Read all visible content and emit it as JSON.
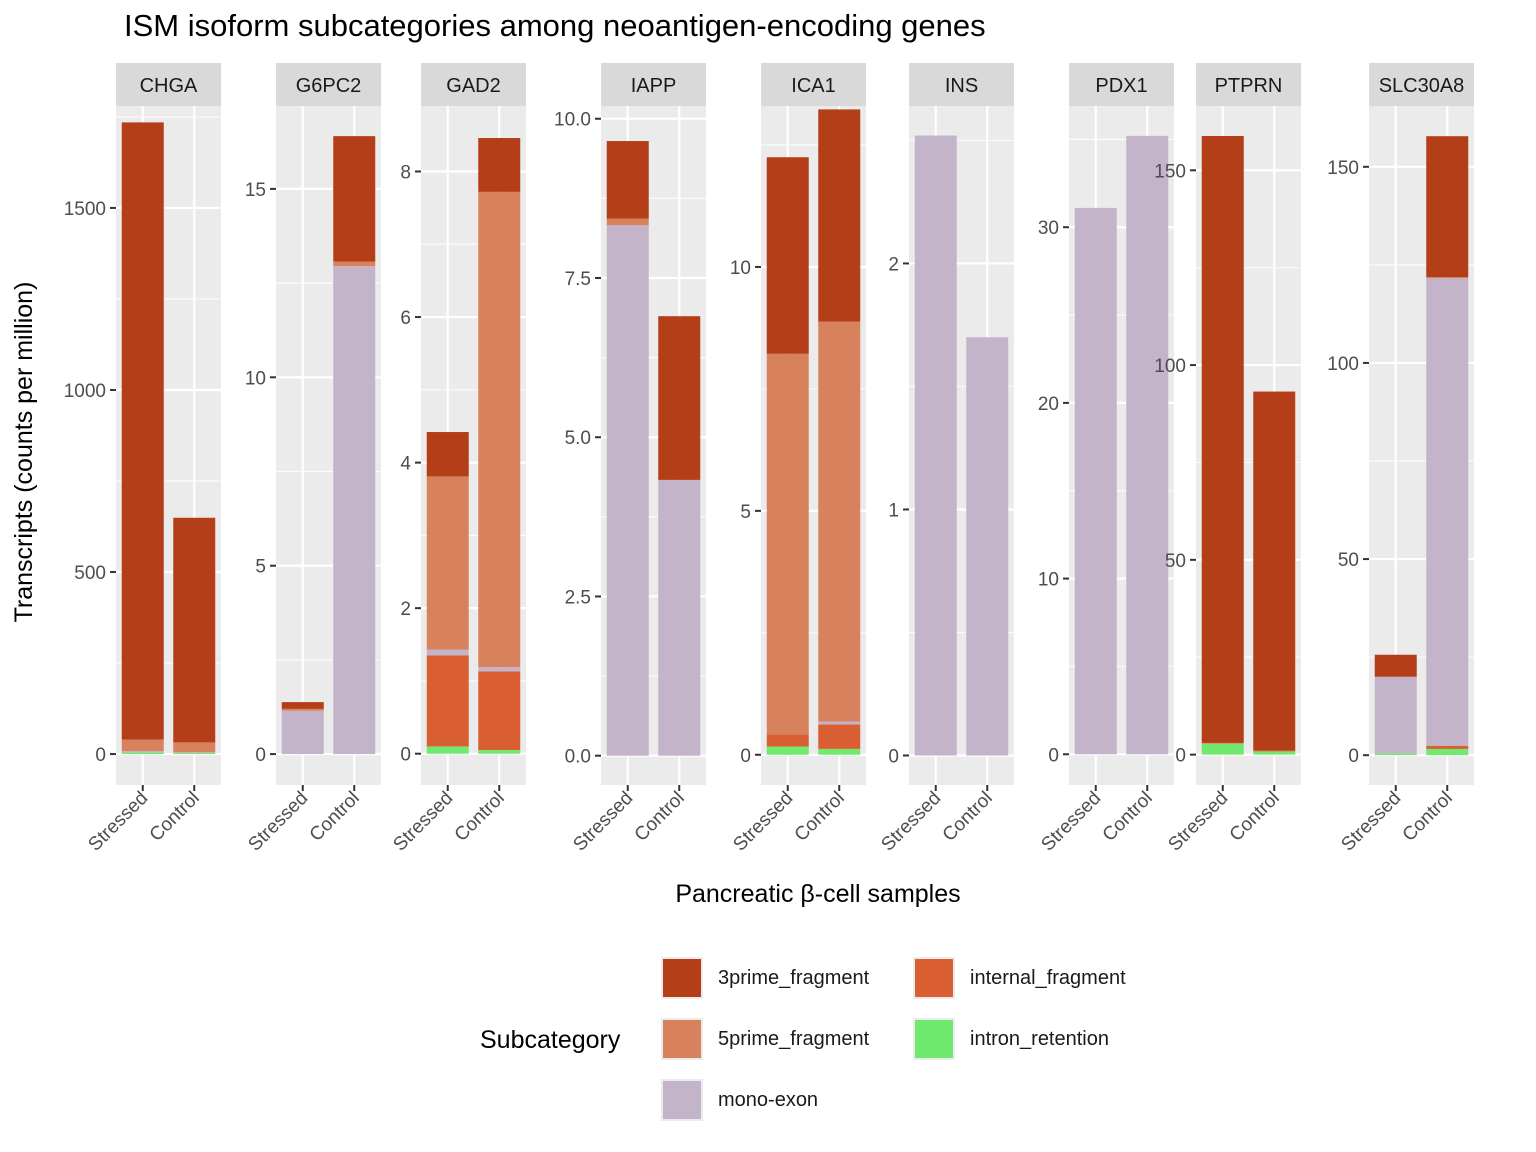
{
  "chart_data": {
    "type": "bar",
    "stacked": true,
    "faceted": true,
    "facet_scales": "free_y",
    "title": "ISM isoform subcategories among neoantigen-encoding genes",
    "xlabel": "Pancreatic β-cell samples",
    "ylabel": "Transcripts (counts per million)",
    "categories": [
      "Stressed",
      "Control"
    ],
    "legend": {
      "title": "Subcategory",
      "placement": "bottom",
      "items": [
        {
          "name": "3prime_fragment",
          "color": "#B43E17"
        },
        {
          "name": "5prime_fragment",
          "color": "#D8825D"
        },
        {
          "name": "mono-exon",
          "color": "#C4B4C9"
        },
        {
          "name": "internal_fragment",
          "color": "#D95F33"
        },
        {
          "name": "intron_retention",
          "color": "#71E86E"
        }
      ]
    },
    "stack_order": [
      "intron_retention",
      "internal_fragment",
      "mono-exon",
      "5prime_fragment",
      "3prime_fragment"
    ],
    "facets": [
      {
        "gene": "CHGA",
        "ylim": [
          -85,
          1780
        ],
        "ticks": [
          0,
          500,
          1000,
          1500
        ],
        "tick_labels": [
          "0",
          "500",
          "1000",
          "1500"
        ],
        "bars": [
          {
            "category": "Stressed",
            "segments": {
              "intron_retention": 5,
              "internal_fragment": 0,
              "mono-exon": 3,
              "5prime_fragment": 32,
              "3prime_fragment": 1695
            }
          },
          {
            "category": "Control",
            "segments": {
              "intron_retention": 3,
              "internal_fragment": 0,
              "mono-exon": 2,
              "5prime_fragment": 27,
              "3prime_fragment": 617
            }
          }
        ]
      },
      {
        "gene": "G6PC2",
        "ylim": [
          -0.82,
          17.2
        ],
        "ticks": [
          0,
          5,
          10,
          15
        ],
        "tick_labels": [
          "0",
          "5",
          "10",
          "15"
        ],
        "bars": [
          {
            "category": "Stressed",
            "segments": {
              "intron_retention": 0,
              "internal_fragment": 0,
              "mono-exon": 1.15,
              "5prime_fragment": 0.05,
              "3prime_fragment": 0.18
            }
          },
          {
            "category": "Control",
            "segments": {
              "intron_retention": 0,
              "internal_fragment": 0,
              "mono-exon": 12.95,
              "5prime_fragment": 0.12,
              "3prime_fragment": 3.33
            }
          }
        ]
      },
      {
        "gene": "GAD2",
        "ylim": [
          -0.43,
          8.9
        ],
        "ticks": [
          0,
          2,
          4,
          6,
          8
        ],
        "tick_labels": [
          "0",
          "2",
          "4",
          "6",
          "8"
        ],
        "bars": [
          {
            "category": "Stressed",
            "segments": {
              "intron_retention": 0.1,
              "internal_fragment": 1.25,
              "mono-exon": 0.08,
              "5prime_fragment": 2.38,
              "3prime_fragment": 0.61
            }
          },
          {
            "category": "Control",
            "segments": {
              "intron_retention": 0.05,
              "internal_fragment": 1.08,
              "mono-exon": 0.06,
              "5prime_fragment": 6.53,
              "3prime_fragment": 0.74
            }
          }
        ]
      },
      {
        "gene": "IAPP",
        "ylim": [
          -0.46,
          10.2
        ],
        "ticks": [
          0,
          2.5,
          5,
          7.5,
          10
        ],
        "tick_labels": [
          "0.0",
          "2.5",
          "5.0",
          "7.5",
          "10.0"
        ],
        "bars": [
          {
            "category": "Stressed",
            "segments": {
              "intron_retention": 0,
              "internal_fragment": 0,
              "mono-exon": 8.33,
              "5prime_fragment": 0.1,
              "3prime_fragment": 1.22
            }
          },
          {
            "category": "Control",
            "segments": {
              "intron_retention": 0,
              "internal_fragment": 0,
              "mono-exon": 4.33,
              "5prime_fragment": 0,
              "3prime_fragment": 2.57
            }
          }
        ]
      },
      {
        "gene": "ICA1",
        "ylim": [
          -0.62,
          13.3
        ],
        "ticks": [
          0,
          5,
          10
        ],
        "tick_labels": [
          "0",
          "5",
          "10"
        ],
        "bars": [
          {
            "category": "Stressed",
            "segments": {
              "intron_retention": 0.17,
              "internal_fragment": 0.25,
              "mono-exon": 0,
              "5prime_fragment": 7.8,
              "3prime_fragment": 4.03
            }
          },
          {
            "category": "Control",
            "segments": {
              "intron_retention": 0.12,
              "internal_fragment": 0.5,
              "mono-exon": 0.06,
              "5prime_fragment": 8.2,
              "3prime_fragment": 4.35
            }
          }
        ]
      },
      {
        "gene": "INS",
        "ylim": [
          -0.12,
          2.64
        ],
        "ticks": [
          0,
          1,
          2
        ],
        "tick_labels": [
          "0",
          "1",
          "2"
        ],
        "bars": [
          {
            "category": "Stressed",
            "segments": {
              "intron_retention": 0,
              "internal_fragment": 0,
              "mono-exon": 2.52,
              "5prime_fragment": 0,
              "3prime_fragment": 0
            }
          },
          {
            "category": "Control",
            "segments": {
              "intron_retention": 0,
              "internal_fragment": 0,
              "mono-exon": 1.7,
              "5prime_fragment": 0,
              "3prime_fragment": 0
            }
          }
        ]
      },
      {
        "gene": "PDX1",
        "ylim": [
          -1.75,
          36.9
        ],
        "ticks": [
          0,
          10,
          20,
          30
        ],
        "tick_labels": [
          "0",
          "10",
          "20",
          "30"
        ],
        "bars": [
          {
            "category": "Stressed",
            "segments": {
              "intron_retention": 0,
              "internal_fragment": 0,
              "mono-exon": 31.1,
              "5prime_fragment": 0,
              "3prime_fragment": 0
            }
          },
          {
            "category": "Control",
            "segments": {
              "intron_retention": 0,
              "internal_fragment": 0,
              "mono-exon": 35.2,
              "5prime_fragment": 0,
              "3prime_fragment": 0
            }
          }
        ]
      },
      {
        "gene": "PTPRN",
        "ylim": [
          -7.8,
          166.5
        ],
        "ticks": [
          0,
          50,
          100,
          150
        ],
        "tick_labels": [
          "0",
          "50",
          "100",
          "150"
        ],
        "bars": [
          {
            "category": "Stressed",
            "segments": {
              "intron_retention": 2.8,
              "internal_fragment": 0,
              "mono-exon": 0,
              "5prime_fragment": 0.2,
              "3prime_fragment": 155.8
            }
          },
          {
            "category": "Control",
            "segments": {
              "intron_retention": 0.8,
              "internal_fragment": 0,
              "mono-exon": 0,
              "5prime_fragment": 0.2,
              "3prime_fragment": 92.2
            }
          }
        ]
      },
      {
        "gene": "SLC30A8",
        "ylim": [
          -7.6,
          165.5
        ],
        "ticks": [
          0,
          50,
          100,
          150
        ],
        "tick_labels": [
          "0",
          "50",
          "100",
          "150"
        ],
        "bars": [
          {
            "category": "Stressed",
            "segments": {
              "intron_retention": 0.4,
              "internal_fragment": 0,
              "mono-exon": 19.6,
              "5prime_fragment": 0,
              "3prime_fragment": 5.6
            }
          },
          {
            "category": "Control",
            "segments": {
              "intron_retention": 1.6,
              "internal_fragment": 0.8,
              "mono-exon": 119.2,
              "5prime_fragment": 0.3,
              "3prime_fragment": 35.9
            }
          }
        ]
      }
    ]
  }
}
